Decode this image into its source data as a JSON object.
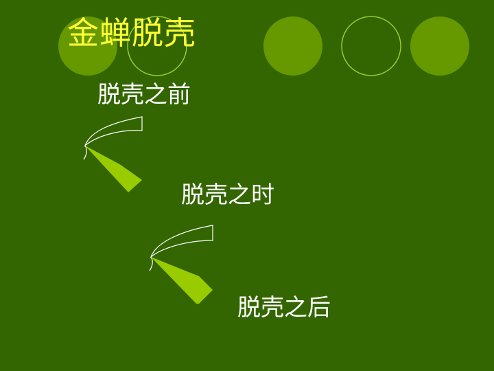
{
  "title": "金蝉脱壳",
  "stages": {
    "before": "脱壳之前",
    "during": "脱壳之时",
    "after": "脱壳之后"
  },
  "colors": {
    "background": "#336600",
    "title": "#ffff33",
    "text": "#ffffff",
    "circle_fill": "#669900",
    "circle_ring": "#99cc33",
    "leaf": "#99cc00"
  }
}
